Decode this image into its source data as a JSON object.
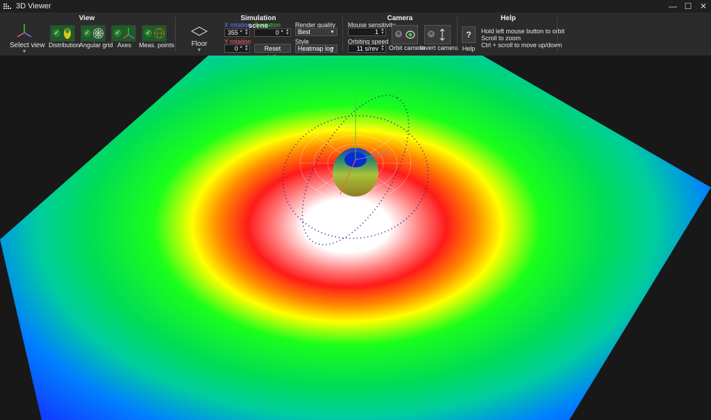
{
  "window": {
    "title": "3D Viewer",
    "controls": [
      "minimize",
      "maximize",
      "close"
    ]
  },
  "groups": {
    "view": "View",
    "scene": "Simulation scene",
    "camera": "Camera",
    "help": "Help"
  },
  "view": {
    "select_view": "Select view",
    "toggles": [
      {
        "label": "Distribution",
        "checked": true,
        "icon": "distribution-icon"
      },
      {
        "label": "Angular grid",
        "checked": true,
        "icon": "angular-grid-icon"
      },
      {
        "label": "Axes",
        "checked": true,
        "icon": "axes-icon"
      },
      {
        "label": "Meas. points",
        "checked": true,
        "icon": "measurement-points-icon"
      }
    ]
  },
  "floor": {
    "label": "Floor"
  },
  "scene": {
    "x_rotation_label": "X rotation",
    "x_rotation_value": "355 °",
    "z_rotation_label": "Z rotation",
    "z_rotation_value": "0 °",
    "y_rotation_label": "Y rotation",
    "y_rotation_value": "0 °",
    "reset_rotation": "Reset rotation",
    "render_quality_label": "Render quality",
    "render_quality_value": "Best",
    "style_label": "Style",
    "style_value": "Heatmap log"
  },
  "camera": {
    "mouse_sensitivity_label": "Mouse sensitivity",
    "mouse_sensitivity_value": "1",
    "orbiting_speed_label": "Orbiting speed",
    "orbiting_speed_value": "11 s/rev",
    "orbit_camera": "Orbit camera",
    "invert_camera": "Invert camera"
  },
  "help": {
    "button": "Help",
    "lines": [
      "Hold left mouse button to orbit",
      "Scroll to zoom",
      "Ctrl + scroll to move up/down"
    ]
  },
  "colors": {
    "x_axis": "#6b7bff",
    "y_axis": "#ff5a5a",
    "z_axis": "#3ccf3c",
    "ribbon": "#2b2b2b"
  }
}
